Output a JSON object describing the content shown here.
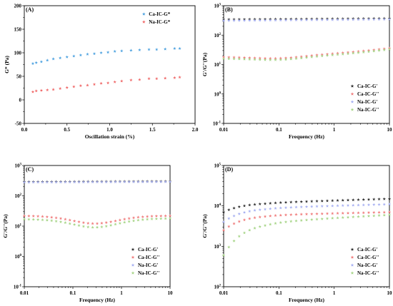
{
  "colors": {
    "ca_g": "#333333",
    "ca_g2": "#f07f7f",
    "na_g": "#a9b2f2",
    "na_g2": "#a9d68b",
    "ca_gstar": "#4fa3e0",
    "na_gstar": "#f06b6b"
  },
  "chart_data": [
    {
      "id": "A",
      "panel_label": "(A)",
      "type": "scatter",
      "xlabel": "Oscillation strain (%)",
      "ylabel": "G* (Pa)",
      "xscale": "linear",
      "yscale": "linear",
      "xlim": [
        0,
        2.0
      ],
      "ylim": [
        -50,
        200
      ],
      "xticks": [
        0.0,
        0.5,
        1.0,
        1.5,
        2.0
      ],
      "xtick_labels": [
        "0.0",
        "0.5",
        "1.0",
        "1.5",
        "2.0"
      ],
      "yticks": [
        -50,
        0,
        50,
        100,
        150,
        200
      ],
      "ytick_labels": [
        "-50",
        "0",
        "50",
        "100",
        "150",
        "200"
      ],
      "legend": "top-right",
      "grid": false,
      "series": [
        {
          "name": "Ca-IC-G*",
          "color": "#4fa3e0",
          "marker": "star",
          "x": [
            0.1,
            0.14,
            0.2,
            0.27,
            0.34,
            0.42,
            0.5,
            0.58,
            0.66,
            0.74,
            0.82,
            0.9,
            0.98,
            1.06,
            1.14,
            1.25,
            1.35,
            1.46,
            1.55,
            1.65,
            1.76,
            1.82
          ],
          "y": [
            77,
            79,
            81,
            84,
            87,
            89,
            91,
            93,
            95,
            97,
            98,
            100,
            101,
            103,
            104,
            105,
            106,
            107,
            107,
            108,
            109,
            109
          ]
        },
        {
          "name": "Na-IC-G*",
          "color": "#f06b6b",
          "marker": "star",
          "x": [
            0.1,
            0.14,
            0.2,
            0.27,
            0.34,
            0.42,
            0.5,
            0.58,
            0.66,
            0.74,
            0.82,
            0.9,
            0.98,
            1.06,
            1.14,
            1.25,
            1.35,
            1.46,
            1.55,
            1.65,
            1.76,
            1.82
          ],
          "y": [
            17,
            19,
            20,
            21,
            22,
            24,
            26,
            28,
            30,
            31,
            33,
            35,
            36,
            38,
            40,
            42,
            43,
            45,
            45,
            46,
            47,
            48
          ]
        }
      ]
    },
    {
      "id": "B",
      "panel_label": "(B)",
      "type": "scatter",
      "xlabel": "Frequency (Hz)",
      "ylabel": "G'/G''(Pa)",
      "xscale": "log",
      "yscale": "log",
      "xlim": [
        0.01,
        10
      ],
      "ylim": [
        0.1,
        1000
      ],
      "xticks": [
        0.01,
        0.1,
        1,
        10
      ],
      "xtick_labels": [
        "0.01",
        "0.1",
        "1",
        "10"
      ],
      "yticks": [
        0.1,
        1,
        10,
        100,
        1000
      ],
      "ytick_exponents": [
        "-1",
        "0",
        "1",
        "2",
        "3"
      ],
      "legend": "bottom-right",
      "grid": false,
      "series": [
        {
          "name": "Ca-IC-G'",
          "color": "#333333",
          "marker": "star",
          "base": 350,
          "shape": "flat",
          "dip": 0
        },
        {
          "name": "Ca-IC-G''",
          "color": "#f07f7f",
          "marker": "star",
          "base": 17,
          "shape": "valley",
          "dip": 0.85
        },
        {
          "name": "Na-IC-G'",
          "color": "#a9b2f2",
          "marker": "star",
          "base": 320,
          "shape": "flat",
          "dip": 0
        },
        {
          "name": "Na-IC-G''",
          "color": "#a9d68b",
          "marker": "star",
          "base": 15,
          "shape": "valley",
          "dip": 0.85
        }
      ],
      "series_endpoints": {
        "Ca-IC-G'": [
          340,
          370
        ],
        "Ca-IC-G''": [
          18,
          36
        ],
        "Na-IC-G'": [
          310,
          345
        ],
        "Na-IC-G''": [
          16,
          33
        ]
      }
    },
    {
      "id": "C",
      "panel_label": "(C)",
      "type": "scatter",
      "xlabel": "Frequency (Hz)",
      "ylabel": "G'/G''(Pa)",
      "xscale": "log",
      "yscale": "log",
      "xlim": [
        0.01,
        10
      ],
      "ylim": [
        0.1,
        1000
      ],
      "xticks": [
        0.01,
        0.1,
        1,
        10
      ],
      "xtick_labels": [
        "0.01",
        "0.1",
        "1",
        "10"
      ],
      "yticks": [
        0.1,
        1,
        10,
        100,
        1000
      ],
      "ytick_exponents": [
        "-1",
        "0",
        "1",
        "2",
        "3"
      ],
      "legend": "bottom-right",
      "grid": false,
      "series_endpoints": {
        "Ca-IC-G'": [
          290,
          300
        ],
        "Ca-IC-G''": [
          22,
          22
        ],
        "Na-IC-G'": [
          280,
          290
        ],
        "Na-IC-G''": [
          17,
          18
        ]
      },
      "series_valley": {
        "Ca-IC-G'": 1.0,
        "Ca-IC-G''": 0.55,
        "Na-IC-G'": 1.0,
        "Na-IC-G''": 0.52
      },
      "series": [
        {
          "name": "Ca-IC-G'",
          "color": "#333333",
          "marker": "star"
        },
        {
          "name": "Ca-IC-G''",
          "color": "#f07f7f",
          "marker": "star"
        },
        {
          "name": "Na-IC-G'",
          "color": "#a9b2f2",
          "marker": "star"
        },
        {
          "name": "Na-IC-G''",
          "color": "#a9d68b",
          "marker": "star"
        }
      ]
    },
    {
      "id": "D",
      "panel_label": "(D)",
      "type": "scatter",
      "xlabel": "Frequency (Hz)",
      "ylabel": "G'/G''(Pa)",
      "xscale": "log",
      "yscale": "log",
      "xlim": [
        0.01,
        10
      ],
      "ylim": [
        100,
        100000
      ],
      "xticks": [
        0.01,
        0.1,
        1,
        10
      ],
      "xtick_labels": [
        "0.01",
        "0.1",
        "1",
        "10"
      ],
      "yticks": [
        100,
        1000,
        10000,
        100000
      ],
      "ytick_exponents": [
        "2",
        "3",
        "4",
        "5"
      ],
      "legend": "bottom-right",
      "grid": false,
      "series": [
        {
          "name": "Ca-IC-G'",
          "color": "#333333",
          "marker": "star",
          "start": 7000,
          "plateau": 12000,
          "end": 15000
        },
        {
          "name": "Ca-IC-G''",
          "color": "#f07f7f",
          "marker": "star",
          "start": 2500,
          "plateau": 6000,
          "end": 7000
        },
        {
          "name": "Na-IC-G'",
          "color": "#a9b2f2",
          "marker": "star",
          "start": 4000,
          "plateau": 9000,
          "end": 11000
        },
        {
          "name": "Na-IC-G''",
          "color": "#a9d68b",
          "marker": "star",
          "start": 600,
          "plateau": 4000,
          "end": 6000
        }
      ]
    }
  ]
}
